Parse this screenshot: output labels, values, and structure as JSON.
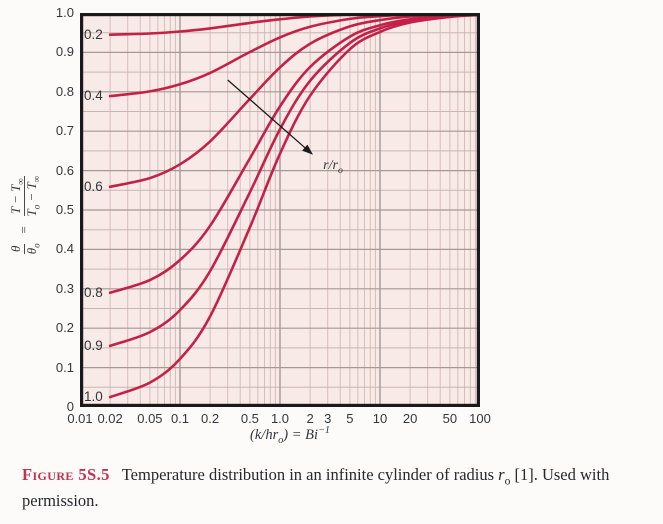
{
  "figure": {
    "caption_label": "Figure 5S.5",
    "caption_text": "Temperature distribution in an infinite cylinder of radius *{r}_{o} [1]. Used with permission."
  },
  "chart_data": {
    "type": "line",
    "x_scale": "log",
    "xlabel": "(k/hr_{o}) = Bi^{−1}",
    "ylabel": {
      "frac1": {
        "num": "θ",
        "den": "θ_{o}"
      },
      "equals": "=",
      "frac2": {
        "num": "T − T_{∞}",
        "den": "T_{o} − T_{∞}"
      }
    },
    "xlim": [
      0.01,
      100
    ],
    "ylim": [
      0,
      1
    ],
    "x_ticks": [
      {
        "v": 0.01,
        "label": "0.01"
      },
      {
        "v": 0.02,
        "label": "0.02"
      },
      {
        "v": 0.05,
        "label": "0.05"
      },
      {
        "v": 0.1,
        "label": "0.1"
      },
      {
        "v": 0.2,
        "label": "0.2"
      },
      {
        "v": 0.5,
        "label": "0.5"
      },
      {
        "v": 1,
        "label": "1.0"
      },
      {
        "v": 2,
        "label": "2"
      },
      {
        "v": 3,
        "label": "3"
      },
      {
        "v": 5,
        "label": "5"
      },
      {
        "v": 10,
        "label": "10"
      },
      {
        "v": 20,
        "label": "20"
      },
      {
        "v": 50,
        "label": "50"
      },
      {
        "v": 100,
        "label": "100"
      }
    ],
    "y_ticks": [
      {
        "v": 1,
        "label": "1.0"
      },
      {
        "v": 0.9,
        "label": "0.9"
      },
      {
        "v": 0.8,
        "label": "0.8"
      },
      {
        "v": 0.7,
        "label": "0.7"
      },
      {
        "v": 0.6,
        "label": "0.6"
      },
      {
        "v": 0.5,
        "label": "0.5"
      },
      {
        "v": 0.4,
        "label": "0.4"
      },
      {
        "v": 0.3,
        "label": "0.3"
      },
      {
        "v": 0.2,
        "label": "0.2"
      },
      {
        "v": 0.1,
        "label": "0.1"
      },
      {
        "v": 0,
        "label": "0"
      }
    ],
    "series_parameter": "r/r_{o}",
    "x": [
      0.01,
      0.02,
      0.05,
      0.1,
      0.2,
      0.5,
      1,
      2,
      5,
      10,
      20,
      50,
      100
    ],
    "series": [
      {
        "name": "0.2",
        "values": [
          0.944,
          0.945,
          0.948,
          0.953,
          0.961,
          0.975,
          0.984,
          0.991,
          0.996,
          0.998,
          0.999,
          1.0,
          1.0
        ]
      },
      {
        "name": "0.4",
        "values": [
          0.785,
          0.789,
          0.801,
          0.819,
          0.848,
          0.901,
          0.938,
          0.965,
          0.985,
          0.992,
          0.996,
          0.998,
          0.999
        ]
      },
      {
        "name": "0.6",
        "values": [
          0.551,
          0.559,
          0.581,
          0.616,
          0.674,
          0.782,
          0.862,
          0.922,
          0.966,
          0.982,
          0.991,
          0.996,
          0.998
        ]
      },
      {
        "name": "0.8",
        "values": [
          0.279,
          0.29,
          0.322,
          0.373,
          0.46,
          0.631,
          0.763,
          0.863,
          0.94,
          0.969,
          0.984,
          0.994,
          0.997
        ]
      },
      {
        "name": "0.9",
        "values": [
          0.143,
          0.155,
          0.19,
          0.246,
          0.345,
          0.545,
          0.705,
          0.828,
          0.924,
          0.961,
          0.98,
          0.992,
          0.996
        ]
      },
      {
        "name": "1.0",
        "values": [
          0.013,
          0.025,
          0.062,
          0.122,
          0.23,
          0.456,
          0.643,
          0.79,
          0.908,
          0.952,
          0.976,
          0.99,
          0.995
        ]
      }
    ],
    "annotation": {
      "label": "r/r_{o}",
      "from": [
        0.3,
        0.83
      ],
      "to": [
        2.14,
        0.64
      ],
      "label_at": [
        3.39,
        0.612
      ]
    },
    "layout": {
      "curves_start_at_x": 0.02,
      "grid": {
        "y_minor_step": 0.05,
        "y_major_step": 0.1,
        "x_minor": "log-integers-2-9"
      },
      "legend": "inline-curve-labels"
    },
    "colors": {
      "curve": "#c32148",
      "plot_bg": "#f8eae6",
      "grid_major": "#a59896",
      "grid_minor_h": "#c9b6b3",
      "grid_minor_v": "#d6bdba",
      "frame": "#1a1a1a",
      "arrow": "#1b1b1b",
      "caption_red": "#c23250",
      "text": "#33373c",
      "page_bg": "#fcfbfa"
    }
  }
}
